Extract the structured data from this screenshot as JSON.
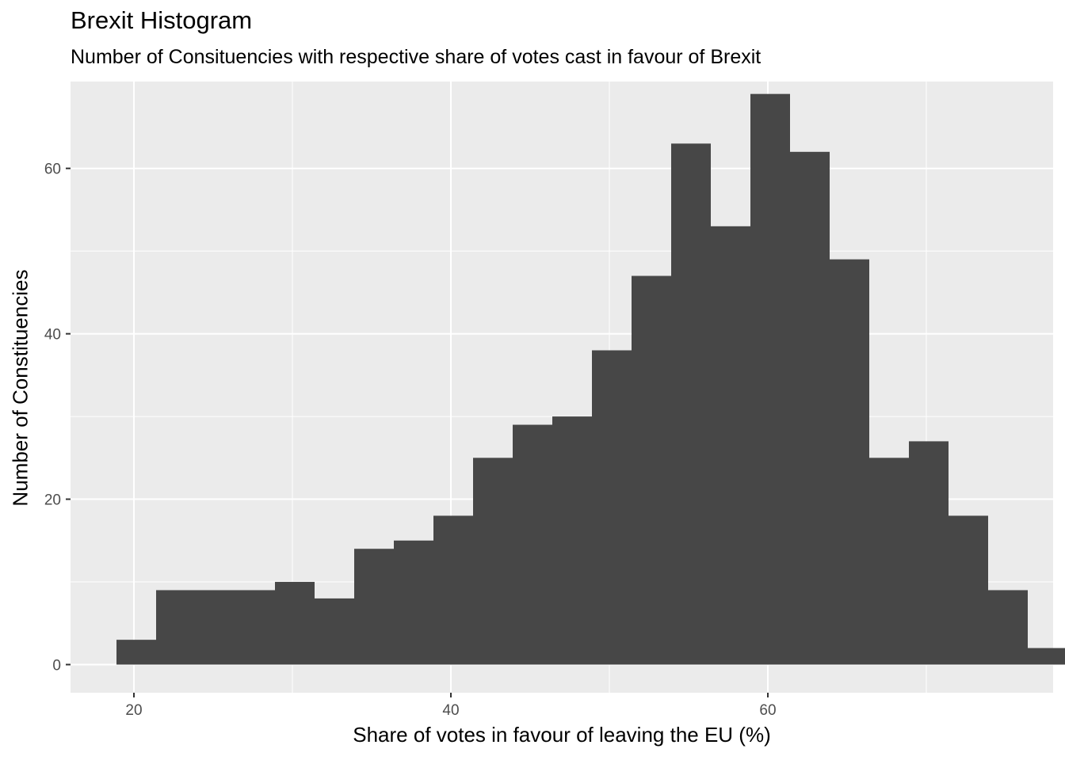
{
  "chart_data": {
    "type": "bar",
    "title": "Brexit Histogram",
    "subtitle": "Number of Consituencies with respective share of votes cast in favour of Brexit",
    "xlabel": "Share of votes in favour of leaving the EU (%)",
    "ylabel": "Number of Constituencies",
    "x_ticks": [
      "20",
      "40",
      "60"
    ],
    "y_ticks": [
      "0",
      "20",
      "40",
      "60"
    ],
    "xlim": [
      16.0,
      78.0
    ],
    "ylim": [
      -3.4,
      70.5
    ],
    "bin_width": 2.5,
    "bin_start": 18.9,
    "values": [
      3,
      9,
      9,
      9,
      10,
      8,
      14,
      15,
      18,
      25,
      29,
      30,
      38,
      47,
      63,
      53,
      69,
      62,
      49,
      25,
      27,
      18,
      9,
      2
    ],
    "grid": true,
    "legend": "none",
    "colors": {
      "panel": "#ebebeb",
      "grid": "#ffffff",
      "bar": "#474747",
      "tick": "#4d4d4d"
    }
  }
}
